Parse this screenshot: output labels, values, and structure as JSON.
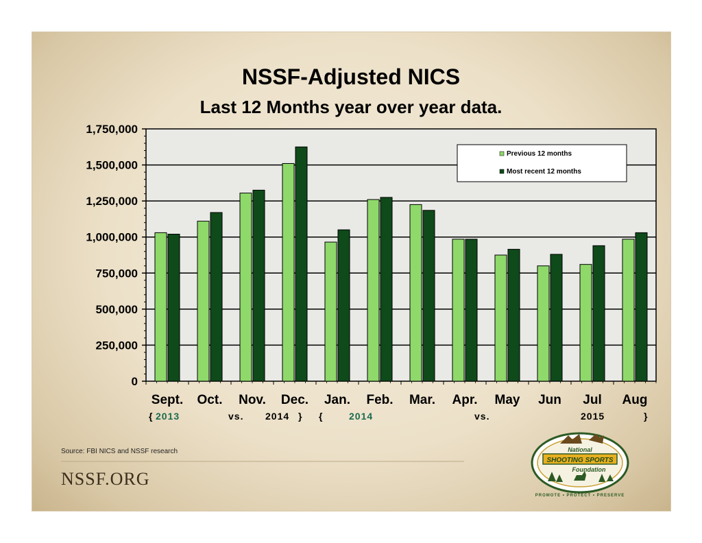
{
  "title": "NSSF-Adjusted NICS",
  "subtitle": "Last 12 Months year over year data.",
  "chart_data": {
    "type": "bar",
    "title": "NSSF-Adjusted NICS",
    "subtitle": "Last 12 Months year over year data.",
    "xlabel": "",
    "ylabel": "",
    "ylim": [
      0,
      1750000
    ],
    "yticks": [
      0,
      250000,
      500000,
      750000,
      1000000,
      1250000,
      1500000,
      1750000
    ],
    "ytick_labels": [
      "0",
      "250,000",
      "500,000",
      "750,000",
      "1,000,000",
      "1,250,000",
      "1,500,000",
      "1,750,000"
    ],
    "grid": "horizontal",
    "legend_position": "top-right",
    "categories": [
      "Sept.",
      "Oct.",
      "Nov.",
      "Dec.",
      "Jan.",
      "Feb.",
      "Mar.",
      "Apr.",
      "May",
      "Jun",
      "Jul",
      "Aug"
    ],
    "series": [
      {
        "name": "Previous 12 months",
        "color": "#8fd96b",
        "values": [
          1030000,
          1110000,
          1305000,
          1510000,
          965000,
          1260000,
          1225000,
          985000,
          875000,
          800000,
          810000,
          985000
        ]
      },
      {
        "name": "Most recent 12 months",
        "color": "#0f4a1a",
        "values": [
          1020000,
          1170000,
          1325000,
          1625000,
          1050000,
          1275000,
          1185000,
          985000,
          915000,
          880000,
          940000,
          1030000
        ]
      }
    ]
  },
  "period_labels": [
    {
      "text": "{",
      "color": "#000000"
    },
    {
      "text": "2013",
      "color": "#1a6b4f"
    },
    {
      "text": "vs.",
      "color": "#000000"
    },
    {
      "text": "2014",
      "color": "#000000"
    },
    {
      "text": "}",
      "color": "#000000"
    },
    {
      "text": "{",
      "color": "#000000"
    },
    {
      "text": "2014",
      "color": "#1a6b4f"
    },
    {
      "text": "vs.",
      "color": "#000000"
    },
    {
      "text": "2015",
      "color": "#000000"
    },
    {
      "text": "}",
      "color": "#000000"
    }
  ],
  "source": "Source: FBI NICS and NSSF research",
  "site": "NSSF.ORG",
  "logo": {
    "line1": "National",
    "line2": "SHOOTING SPORTS",
    "line3": "Foundation",
    "tagline": "PROMOTE • PROTECT • PRESERVE"
  },
  "colors": {
    "plot_background": "#e9e9e6",
    "grid": "#000000",
    "accent_green": "#1a6b4f"
  }
}
